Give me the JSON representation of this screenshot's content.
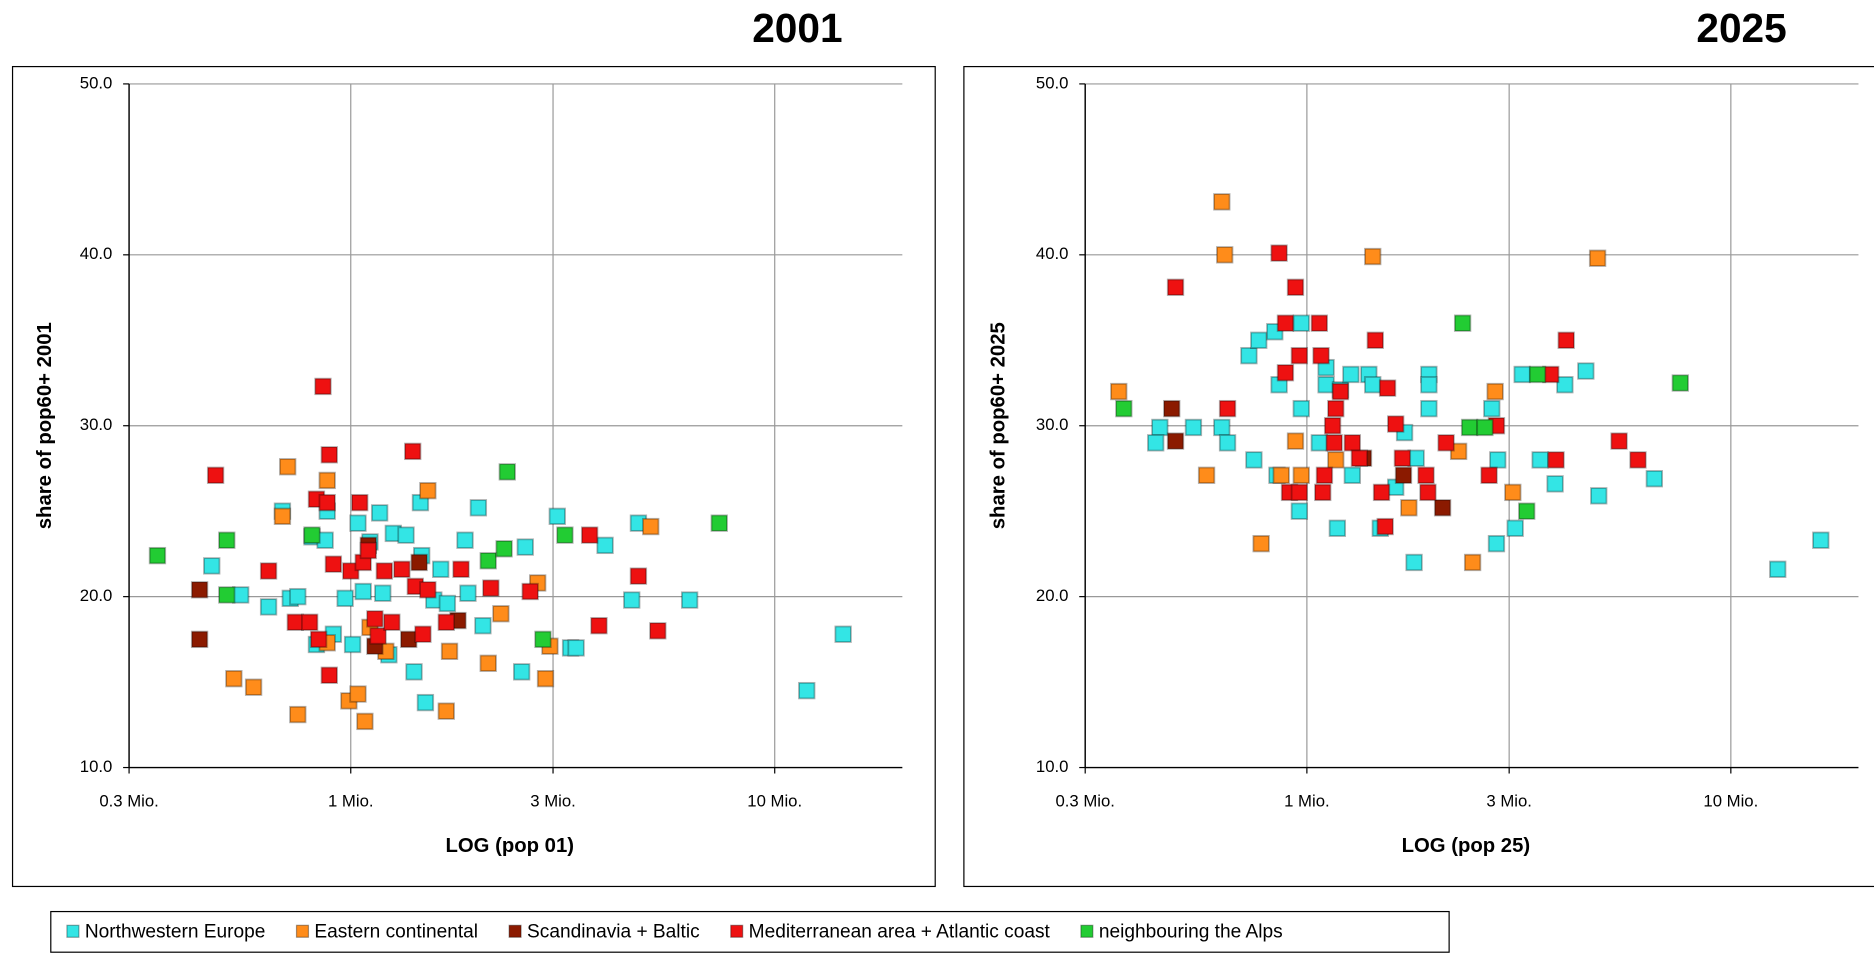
{
  "chart_data": [
    {
      "type": "scatter",
      "title": "2001",
      "x_label": "LOG (pop 01)",
      "y_label": "share of pop60+ 2001",
      "log_x": true,
      "grid": true,
      "xlim": [
        0.3,
        20
      ],
      "ylim": [
        10,
        50
      ],
      "xticks": [
        {
          "value": 0.3,
          "label": "0.3 Mio."
        },
        {
          "value": 1,
          "label": "1 Mio."
        },
        {
          "value": 3,
          "label": "3 Mio."
        },
        {
          "value": 10,
          "label": "10 Mio."
        }
      ],
      "yticks": [
        {
          "value": 10,
          "label": "10.0"
        },
        {
          "value": 20,
          "label": "20.0"
        },
        {
          "value": 30,
          "label": "30.0"
        },
        {
          "value": 40,
          "label": "40.0"
        },
        {
          "value": 50,
          "label": "50.0"
        }
      ],
      "series": [
        {
          "name": "Northwestern Europe",
          "color": "#33e5e5",
          "x": [
            0.47,
            0.55,
            0.64,
            0.69,
            0.72,
            0.75,
            0.81,
            0.87,
            0.88,
            0.83,
            0.91,
            0.97,
            1.01,
            1.04,
            1.07,
            1.11,
            1.17,
            1.19,
            1.23,
            1.26,
            1.35,
            1.41,
            1.47,
            1.46,
            1.5,
            1.57,
            1.63,
            1.69,
            1.86,
            1.89,
            2.0,
            2.05,
            2.53,
            2.58,
            3.07,
            3.3,
            3.4,
            3.98,
            4.6,
            4.77,
            6.3,
            11.9,
            14.5
          ],
          "values": [
            21.8,
            20.1,
            19.4,
            25.0,
            19.9,
            20.0,
            23.5,
            23.3,
            25.0,
            17.2,
            17.8,
            19.9,
            17.2,
            24.3,
            20.3,
            23.2,
            24.9,
            20.2,
            16.6,
            23.7,
            23.6,
            15.6,
            22.4,
            25.5,
            13.8,
            19.8,
            21.6,
            19.6,
            23.3,
            20.2,
            25.2,
            18.3,
            15.6,
            22.9,
            24.7,
            17.0,
            17.0,
            23.0,
            19.8,
            24.3,
            19.8,
            14.5,
            17.8
          ]
        },
        {
          "name": "Eastern continental",
          "color": "#ff8c1a",
          "x": [
            0.69,
            0.71,
            0.75,
            0.53,
            0.59,
            0.88,
            0.88,
            0.99,
            1.04,
            1.08,
            1.11,
            1.21,
            1.52,
            1.68,
            1.71,
            2.11,
            2.26,
            2.76,
            2.88,
            2.95,
            5.1
          ],
          "values": [
            24.7,
            27.6,
            13.1,
            15.2,
            14.7,
            26.8,
            17.3,
            13.9,
            14.3,
            12.7,
            18.2,
            16.8,
            26.2,
            13.3,
            16.8,
            16.1,
            19.0,
            20.8,
            15.2,
            17.1,
            24.1
          ]
        },
        {
          "name": "Scandinavia + Baltic",
          "color": "#8b1a00",
          "x": [
            0.44,
            0.44,
            1.1,
            1.45,
            1.37,
            1.79,
            1.14
          ],
          "values": [
            20.4,
            17.5,
            23.0,
            22.0,
            17.5,
            18.6,
            17.1
          ]
        },
        {
          "name": "Mediterranean area + Atlantic coast",
          "color": "#ee1111",
          "x": [
            0.48,
            0.64,
            0.74,
            0.8,
            0.83,
            0.86,
            0.88,
            0.89,
            0.89,
            0.91,
            0.84,
            1.0,
            1.05,
            1.07,
            1.1,
            1.14,
            1.16,
            1.2,
            1.25,
            1.32,
            1.4,
            1.42,
            1.48,
            1.52,
            1.68,
            1.82,
            2.14,
            2.65,
            3.66,
            3.85,
            4.77,
            5.3
          ],
          "values": [
            27.1,
            21.5,
            18.5,
            18.5,
            25.7,
            32.3,
            25.5,
            28.3,
            15.4,
            21.9,
            17.5,
            21.5,
            25.5,
            22.0,
            22.7,
            18.7,
            17.7,
            21.5,
            18.5,
            21.6,
            28.5,
            20.6,
            17.8,
            20.4,
            18.5,
            21.6,
            20.5,
            20.3,
            23.6,
            18.3,
            21.2,
            18.0
          ]
        },
        {
          "name": "neighbouring the Alps",
          "color": "#22cc33",
          "x": [
            0.35,
            0.51,
            0.51,
            0.81,
            2.34,
            2.11,
            2.3,
            3.2,
            2.84,
            7.4
          ],
          "values": [
            22.4,
            23.3,
            20.1,
            23.6,
            27.3,
            22.1,
            22.8,
            23.6,
            17.5,
            24.3
          ]
        }
      ]
    },
    {
      "type": "scatter",
      "title": "2025",
      "x_label": "LOG (pop 25)",
      "y_label": "share of pop60+ 2025",
      "log_x": true,
      "grid": true,
      "xlim": [
        0.3,
        20
      ],
      "ylim": [
        10,
        50
      ],
      "xticks": [
        {
          "value": 0.3,
          "label": "0.3 Mio."
        },
        {
          "value": 1,
          "label": "1 Mio."
        },
        {
          "value": 3,
          "label": "3 Mio."
        },
        {
          "value": 10,
          "label": "10 Mio."
        }
      ],
      "yticks": [
        {
          "value": 10,
          "label": "10.0"
        },
        {
          "value": 20,
          "label": "20.0"
        },
        {
          "value": 30,
          "label": "30.0"
        },
        {
          "value": 40,
          "label": "40.0"
        },
        {
          "value": 50,
          "label": "50.0"
        }
      ],
      "series": [
        {
          "color": "#33e5e5",
          "x": [
            0.45,
            0.44,
            0.54,
            0.63,
            0.65,
            0.73,
            0.77,
            0.84,
            0.75,
            0.85,
            0.86,
            0.97,
            0.97,
            0.96,
            1.07,
            1.11,
            1.11,
            1.18,
            1.2,
            1.27,
            1.28,
            1.4,
            1.43,
            1.49,
            1.62,
            1.7,
            1.81,
            1.79,
            1.94,
            1.94,
            1.94,
            2.8,
            2.73,
            2.82,
            3.1,
            3.22,
            3.55,
            3.85,
            4.06,
            4.55,
            4.88,
            6.6,
            12.9,
            16.3
          ],
          "values": [
            29.9,
            29.0,
            29.9,
            29.9,
            29.0,
            34.1,
            35.0,
            35.5,
            28.0,
            27.1,
            32.4,
            31.0,
            36.0,
            25.0,
            29.0,
            33.4,
            32.4,
            24.0,
            32.1,
            33.0,
            27.1,
            33.0,
            32.4,
            24.0,
            26.4,
            29.6,
            28.1,
            22.0,
            33.0,
            31.0,
            32.4,
            23.1,
            31.0,
            28.0,
            24.0,
            33.0,
            28.0,
            26.6,
            32.4,
            33.2,
            25.9,
            26.9,
            21.6,
            23.3
          ]
        },
        {
          "color": "#ff8c1a",
          "x": [
            0.36,
            0.58,
            0.63,
            0.64,
            0.78,
            0.87,
            0.94,
            0.97,
            1.17,
            1.43,
            1.74,
            2.28,
            2.46,
            2.78,
            3.06,
            4.85
          ],
          "values": [
            32.0,
            27.1,
            43.1,
            40.0,
            23.1,
            27.1,
            29.1,
            27.1,
            28.0,
            39.9,
            25.2,
            28.5,
            22.0,
            32.0,
            26.1,
            39.8
          ]
        },
        {
          "color": "#8b1a00",
          "x": [
            0.48,
            0.49,
            1.36,
            1.69,
            2.09
          ],
          "values": [
            31.0,
            29.1,
            28.1,
            27.1,
            25.2
          ]
        },
        {
          "color": "#ee1111",
          "x": [
            0.49,
            0.65,
            0.86,
            0.89,
            0.89,
            0.91,
            0.94,
            0.96,
            0.96,
            1.07,
            1.08,
            1.09,
            1.1,
            1.15,
            1.16,
            1.17,
            1.2,
            1.28,
            1.33,
            1.45,
            1.5,
            1.53,
            1.55,
            1.62,
            1.68,
            1.91,
            1.93,
            2.13,
            2.69,
            2.8,
            3.76,
            3.87,
            4.09,
            5.45,
            6.04
          ],
          "values": [
            38.1,
            31.0,
            40.1,
            36.0,
            33.1,
            26.1,
            38.1,
            34.1,
            26.1,
            36.0,
            34.1,
            26.1,
            27.1,
            30.0,
            29.0,
            31.0,
            32.0,
            29.0,
            28.1,
            35.0,
            26.1,
            24.1,
            32.2,
            30.1,
            28.1,
            27.1,
            26.1,
            29.0,
            27.1,
            30.0,
            33.0,
            28.0,
            35.0,
            29.1,
            28.0
          ]
        },
        {
          "color": "#22cc33",
          "x": [
            0.37,
            2.33,
            2.42,
            2.63,
            3.3,
            3.5,
            7.6
          ],
          "values": [
            31.0,
            36.0,
            29.9,
            29.9,
            25.0,
            33.0,
            32.5
          ]
        }
      ]
    }
  ]
}
